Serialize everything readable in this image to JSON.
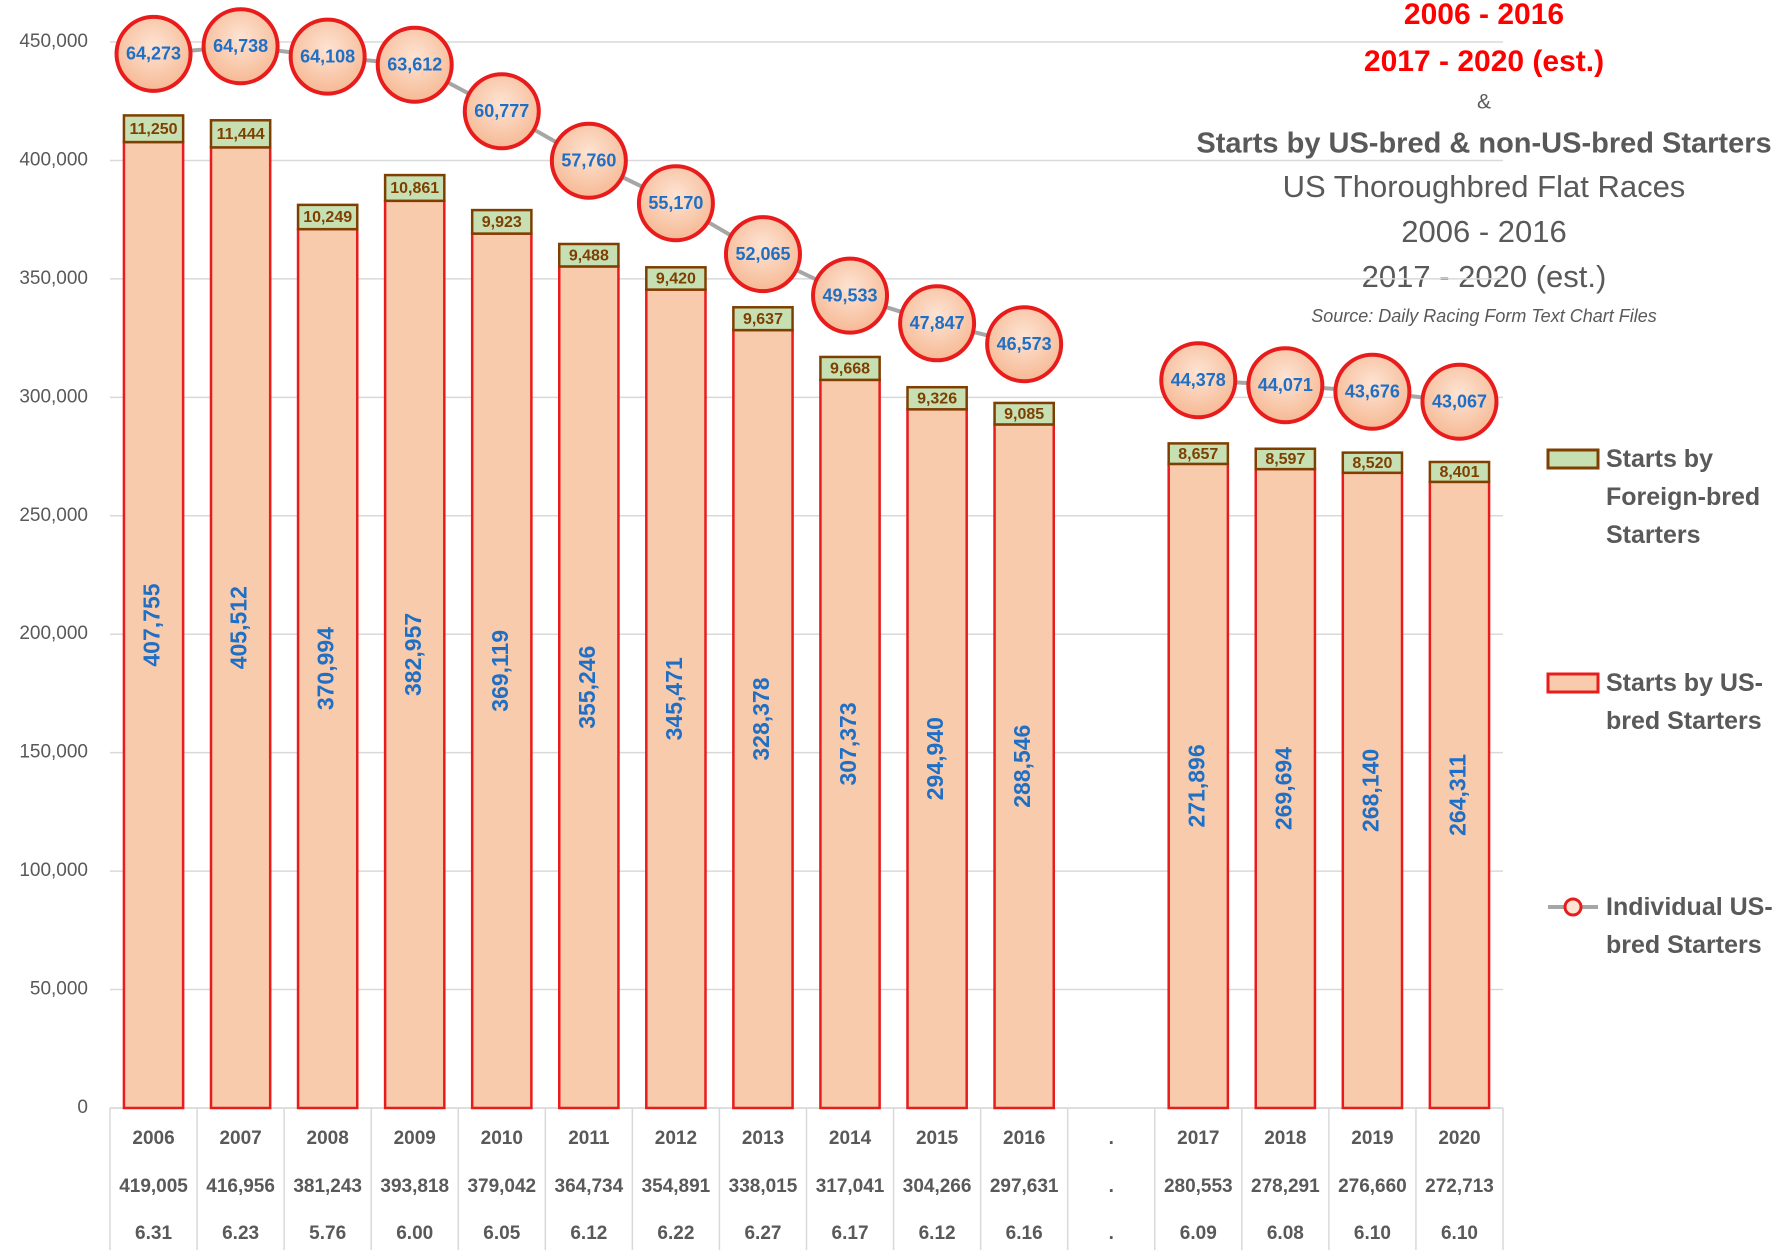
{
  "chart_data": {
    "type": "bar",
    "stacked": true,
    "title_lines_red": [
      "2006 - 2016",
      "2017 - 2020 (est.)"
    ],
    "title_amp": "&",
    "title": "Starts by US-bred & non-US-bred Starters",
    "subtitle_lines": [
      "US Thoroughbred Flat Races",
      "2006 - 2016",
      "2017 - 2020 (est.)"
    ],
    "source": "Source: Daily Racing Form Text Chart Files",
    "categories": [
      "2006",
      "2007",
      "2008",
      "2009",
      "2010",
      "2011",
      "2012",
      "2013",
      "2014",
      "2015",
      "2016",
      ".",
      "2017",
      "2018",
      "2019",
      "2020"
    ],
    "total_row": [
      "419,005",
      "416,956",
      "381,243",
      "393,818",
      "379,042",
      "364,734",
      "354,891",
      "338,015",
      "317,041",
      "304,266",
      "297,631",
      ".",
      "280,553",
      "278,291",
      "276,660",
      "272,713"
    ],
    "ratio_row": [
      "6.31",
      "6.23",
      "5.76",
      "6.00",
      "6.05",
      "6.12",
      "6.22",
      "6.27",
      "6.17",
      "6.12",
      "6.16",
      ".",
      "6.09",
      "6.08",
      "6.10",
      "6.10"
    ],
    "ylim": [
      0,
      450000
    ],
    "yticks": [
      0,
      {
        "value": 50000,
        "label": "50,000"
      },
      {
        "value": 100000,
        "label": "100,000"
      },
      {
        "value": 150000,
        "label": "150,000"
      },
      {
        "value": 200000,
        "label": "200,000"
      },
      {
        "value": 250000,
        "label": "250,000"
      },
      {
        "value": 300000,
        "label": "300,000"
      },
      {
        "value": 350000,
        "label": "350,000"
      },
      {
        "value": 400000,
        "label": "400,000"
      },
      {
        "value": 450000,
        "label": "450,000"
      }
    ],
    "y2lim": [
      0,
      65000
    ],
    "grid": true,
    "series": [
      {
        "name": "Starts by US-bred Starters",
        "type": "bar",
        "color": "#f8cbad",
        "edge": "#e81c1c",
        "values": [
          407755,
          405512,
          370994,
          382957,
          369119,
          355246,
          345471,
          328378,
          307373,
          294940,
          288546,
          null,
          271896,
          269694,
          268140,
          264311
        ],
        "value_labels": [
          "407,755",
          "405,512",
          "370,994",
          "382,957",
          "369,119",
          "355,246",
          "345,471",
          "328,378",
          "307,373",
          "294,940",
          "288,546",
          null,
          "271,896",
          "269,694",
          "268,140",
          "264,311"
        ]
      },
      {
        "name": "Starts by Foreign-bred Starters",
        "type": "bar",
        "color": "#c6e0b4",
        "edge": "#7f3f00",
        "values": [
          11250,
          11444,
          10249,
          10861,
          9923,
          9488,
          9420,
          9637,
          9668,
          9326,
          9085,
          null,
          8657,
          8597,
          8520,
          8401
        ],
        "value_labels": [
          "11,250",
          "11,444",
          "10,249",
          "10,861",
          "9,923",
          "9,488",
          "9,420",
          "9,637",
          "9,668",
          "9,326",
          "9,085",
          null,
          "8,657",
          "8,597",
          "8,520",
          "8,401"
        ]
      },
      {
        "name": "Individual US-bred Starters",
        "type": "line",
        "axis": "y2",
        "color": "#a6a6a6",
        "marker_edge": "#e81c1c",
        "values": [
          64273,
          64738,
          64108,
          63612,
          60777,
          57760,
          55170,
          52065,
          49533,
          47847,
          46573,
          null,
          44378,
          44071,
          43676,
          43067
        ],
        "value_labels": [
          "64,273",
          "64,738",
          "64,108",
          "63,612",
          "60,777",
          "57,760",
          "55,170",
          "52,065",
          "49,533",
          "47,847",
          "46,573",
          null,
          "44,378",
          "44,071",
          "43,676",
          "43,067"
        ]
      }
    ]
  }
}
